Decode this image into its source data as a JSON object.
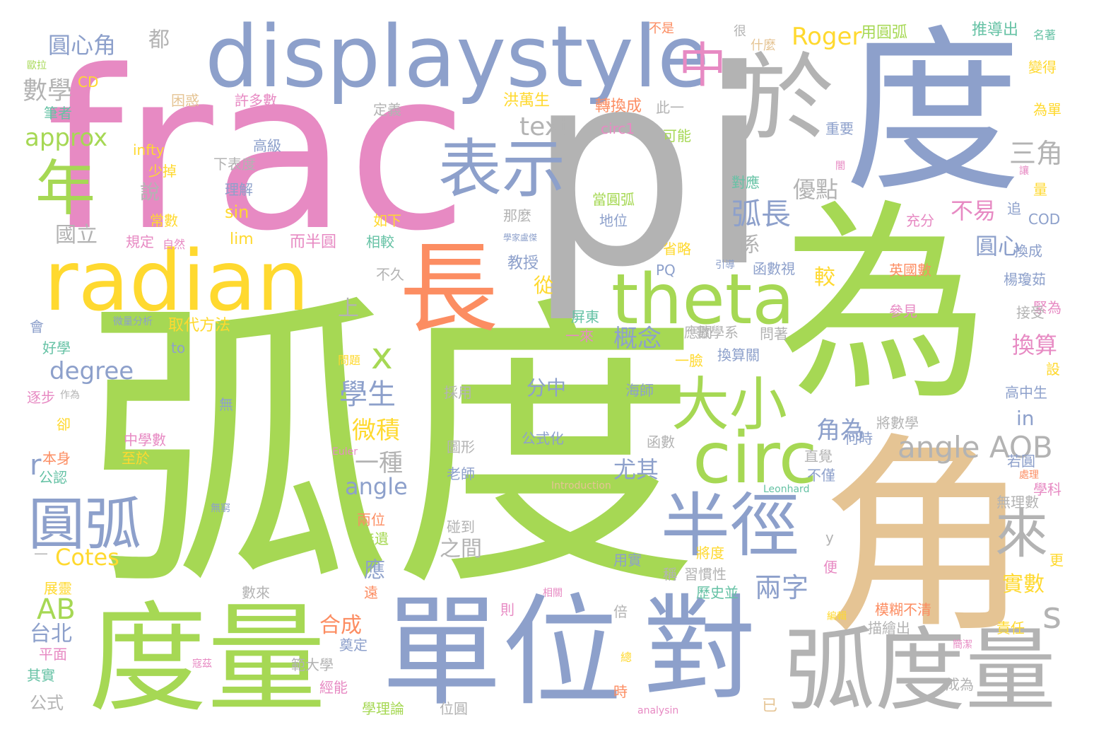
{
  "palette": {
    "green": "#a6d854",
    "blue": "#8da0cb",
    "pink": "#e78ac3",
    "gray": "#b3b3b3",
    "gold": "#ffd92f",
    "tan": "#e5c494",
    "orange": "#fc8d62",
    "teal": "#66c2a5"
  },
  "words": [
    {
      "text": "弧度",
      "color": "green"
    },
    {
      "text": "pi",
      "color": "gray"
    },
    {
      "text": "frac",
      "color": "pink"
    },
    {
      "text": "為",
      "color": "green"
    },
    {
      "text": "度",
      "color": "blue"
    },
    {
      "text": "角",
      "color": "tan"
    },
    {
      "text": "displaystyle",
      "color": "blue"
    },
    {
      "text": "radian",
      "color": "gold"
    },
    {
      "text": "度量",
      "color": "green"
    },
    {
      "text": "單位",
      "color": "blue"
    },
    {
      "text": "弧度量",
      "color": "gray"
    },
    {
      "text": "對",
      "color": "blue"
    },
    {
      "text": "長",
      "color": "orange"
    },
    {
      "text": "於",
      "color": "gray"
    },
    {
      "text": "theta",
      "color": "green"
    },
    {
      "text": "circ",
      "color": "green"
    },
    {
      "text": "半徑",
      "color": "blue"
    },
    {
      "text": "表示",
      "color": "blue"
    },
    {
      "text": "大小",
      "color": "green"
    },
    {
      "text": "圓弧",
      "color": "blue"
    },
    {
      "text": "年",
      "color": "green"
    },
    {
      "text": "中",
      "color": "pink"
    },
    {
      "text": "來",
      "color": "gray"
    },
    {
      "text": "x",
      "color": "green"
    },
    {
      "text": "s",
      "color": "gray"
    },
    {
      "text": "angle AOB",
      "color": "gray"
    },
    {
      "text": "弧長",
      "color": "blue"
    },
    {
      "text": "兩字",
      "color": "blue"
    },
    {
      "text": "學生",
      "color": "blue"
    },
    {
      "text": "三角",
      "color": "gray"
    },
    {
      "text": "數學",
      "color": "gray"
    },
    {
      "text": "圓心角",
      "color": "blue"
    },
    {
      "text": "text",
      "color": "gray"
    },
    {
      "text": "approx",
      "color": "green"
    },
    {
      "text": "Roger",
      "color": "gold"
    },
    {
      "text": "degree",
      "color": "blue"
    },
    {
      "text": "AB",
      "color": "green"
    },
    {
      "text": "Cotes",
      "color": "gold"
    },
    {
      "text": "angle",
      "color": "blue"
    },
    {
      "text": "概念",
      "color": "blue"
    },
    {
      "text": "角為",
      "color": "blue"
    },
    {
      "text": "微積",
      "color": "gold"
    },
    {
      "text": "一種",
      "color": "gray"
    },
    {
      "text": "尤其",
      "color": "blue"
    },
    {
      "text": "優點",
      "color": "gray"
    },
    {
      "text": "不易",
      "color": "pink"
    },
    {
      "text": "圓心",
      "color": "blue"
    },
    {
      "text": "換算",
      "color": "pink"
    },
    {
      "text": "實數",
      "color": "gold"
    },
    {
      "text": "合成",
      "color": "orange"
    },
    {
      "text": "台北",
      "color": "blue"
    },
    {
      "text": "國立",
      "color": "gray"
    },
    {
      "text": "分中",
      "color": "blue"
    },
    {
      "text": "之間",
      "color": "gray"
    },
    {
      "text": "應",
      "color": "blue"
    },
    {
      "text": "r",
      "color": "blue"
    },
    {
      "text": "都",
      "color": "gray"
    },
    {
      "text": "sin",
      "color": "gold"
    },
    {
      "text": "lim",
      "color": "gold"
    },
    {
      "text": "in",
      "color": "blue"
    },
    {
      "text": "較",
      "color": "gold"
    },
    {
      "text": "從",
      "color": "gold"
    },
    {
      "text": "上",
      "color": "gray"
    },
    {
      "text": "說",
      "color": "gray"
    },
    {
      "text": "係",
      "color": "gray"
    },
    {
      "text": "推導出",
      "color": "teal"
    },
    {
      "text": "用圓弧",
      "color": "green"
    },
    {
      "text": "什麼",
      "color": "tan"
    },
    {
      "text": "不是",
      "color": "orange"
    },
    {
      "text": "很",
      "color": "gray"
    },
    {
      "text": "洪萬生",
      "color": "gold"
    },
    {
      "text": "轉換成",
      "color": "orange"
    },
    {
      "text": "此一",
      "color": "gray"
    },
    {
      "text": "定義",
      "color": "gray"
    },
    {
      "text": "許多數",
      "color": "pink"
    },
    {
      "text": "困惑",
      "color": "tan"
    },
    {
      "text": "筆者",
      "color": "teal"
    },
    {
      "text": "circ1",
      "color": "pink"
    },
    {
      "text": "可能",
      "color": "green"
    },
    {
      "text": "重要",
      "color": "blue"
    },
    {
      "text": "infty",
      "color": "gold"
    },
    {
      "text": "高級",
      "color": "blue"
    },
    {
      "text": "少掉",
      "color": "gold"
    },
    {
      "text": "下表度",
      "color": "gray"
    },
    {
      "text": "理解",
      "color": "blue"
    },
    {
      "text": "常數",
      "color": "gold"
    },
    {
      "text": "規定",
      "color": "pink"
    },
    {
      "text": "自然",
      "color": "pink"
    },
    {
      "text": "而半圓",
      "color": "pink"
    },
    {
      "text": "如下",
      "color": "gold"
    },
    {
      "text": "相較",
      "color": "teal"
    },
    {
      "text": "當圓弧",
      "color": "green"
    },
    {
      "text": "地位",
      "color": "blue"
    },
    {
      "text": "對應",
      "color": "teal"
    },
    {
      "text": "那麼",
      "color": "gray"
    },
    {
      "text": "省略",
      "color": "gold"
    },
    {
      "text": "教授",
      "color": "blue"
    },
    {
      "text": "不久",
      "color": "gray"
    },
    {
      "text": "函數視",
      "color": "blue"
    },
    {
      "text": "英國數",
      "color": "orange"
    },
    {
      "text": "PQ",
      "color": "blue"
    },
    {
      "text": "引導",
      "color": "blue"
    },
    {
      "text": "參見",
      "color": "pink"
    },
    {
      "text": "取代方法",
      "color": "gold"
    },
    {
      "text": "微量分析",
      "color": "blue"
    },
    {
      "text": "屏東",
      "color": "teal"
    },
    {
      "text": "應關",
      "color": "gray"
    },
    {
      "text": "數學系",
      "color": "gray"
    },
    {
      "text": "問著",
      "color": "gray"
    },
    {
      "text": "一來",
      "color": "pink"
    },
    {
      "text": "換算關",
      "color": "blue"
    },
    {
      "text": "一臉",
      "color": "gold"
    },
    {
      "text": "好學",
      "color": "teal"
    },
    {
      "text": "to",
      "color": "blue"
    },
    {
      "text": "問題",
      "color": "gold"
    },
    {
      "text": "無",
      "color": "blue"
    },
    {
      "text": "逐步",
      "color": "pink"
    },
    {
      "text": "作為",
      "color": "gray"
    },
    {
      "text": "海師",
      "color": "blue"
    },
    {
      "text": "採用",
      "color": "gray"
    },
    {
      "text": "將數學",
      "color": "gray"
    },
    {
      "text": "中學數",
      "color": "pink"
    },
    {
      "text": "至於",
      "color": "gold"
    },
    {
      "text": "公式化",
      "color": "blue"
    },
    {
      "text": "函數",
      "color": "gray"
    },
    {
      "text": "圖形",
      "color": "gray"
    },
    {
      "text": "何時",
      "color": "blue"
    },
    {
      "text": "直覺",
      "color": "gray"
    },
    {
      "text": "不僅",
      "color": "blue"
    },
    {
      "text": "若圓",
      "color": "blue"
    },
    {
      "text": "Euler",
      "color": "pink"
    },
    {
      "text": "本身",
      "color": "orange"
    },
    {
      "text": "公認",
      "color": "teal"
    },
    {
      "text": "老師",
      "color": "blue"
    },
    {
      "text": "Introduction",
      "color": "tan"
    },
    {
      "text": "Leonhard",
      "color": "teal"
    },
    {
      "text": "無理數",
      "color": "gray"
    },
    {
      "text": "學科",
      "color": "pink"
    },
    {
      "text": "處理",
      "color": "orange"
    },
    {
      "text": "無窮",
      "color": "blue"
    },
    {
      "text": "兩位",
      "color": "orange"
    },
    {
      "text": "無遺",
      "color": "green"
    },
    {
      "text": "碰到",
      "color": "gray"
    },
    {
      "text": "用實",
      "color": "blue"
    },
    {
      "text": "將度",
      "color": "gold"
    },
    {
      "text": "習慣性",
      "color": "gray"
    },
    {
      "text": "歷史並",
      "color": "teal"
    },
    {
      "text": "展靈",
      "color": "gold"
    },
    {
      "text": "數來",
      "color": "gray"
    },
    {
      "text": "遠",
      "color": "orange"
    },
    {
      "text": "相關",
      "color": "pink"
    },
    {
      "text": "則",
      "color": "pink"
    },
    {
      "text": "倍",
      "color": "gray"
    },
    {
      "text": "模糊不清",
      "color": "orange"
    },
    {
      "text": "編輯",
      "color": "gold"
    },
    {
      "text": "描繪出",
      "color": "gray"
    },
    {
      "text": "責任",
      "color": "gold"
    },
    {
      "text": "簡潔",
      "color": "pink"
    },
    {
      "text": "奠定",
      "color": "blue"
    },
    {
      "text": "範大學",
      "color": "gray"
    },
    {
      "text": "經能",
      "color": "pink"
    },
    {
      "text": "寇茲",
      "color": "pink"
    },
    {
      "text": "平面",
      "color": "pink"
    },
    {
      "text": "其實",
      "color": "teal"
    },
    {
      "text": "公式",
      "color": "gray"
    },
    {
      "text": "學理論",
      "color": "green"
    },
    {
      "text": "位圓",
      "color": "gray"
    },
    {
      "text": "analysin",
      "color": "pink"
    },
    {
      "text": "時",
      "color": "orange"
    },
    {
      "text": "總",
      "color": "gold"
    },
    {
      "text": "已",
      "color": "tan"
    },
    {
      "text": "成為",
      "color": "gray"
    },
    {
      "text": "稱",
      "color": "gray"
    },
    {
      "text": "更",
      "color": "gold"
    },
    {
      "text": "便",
      "color": "pink"
    },
    {
      "text": "y",
      "color": "gray"
    },
    {
      "text": "楊瓊茹",
      "color": "blue"
    },
    {
      "text": "緊為",
      "color": "pink"
    },
    {
      "text": "接受",
      "color": "gray"
    },
    {
      "text": "高中生",
      "color": "blue"
    },
    {
      "text": "設",
      "color": "gold"
    },
    {
      "text": "換成",
      "color": "blue"
    },
    {
      "text": "COD",
      "color": "blue"
    },
    {
      "text": "充分",
      "color": "pink"
    },
    {
      "text": "追",
      "color": "blue"
    },
    {
      "text": "量",
      "color": "gold"
    },
    {
      "text": "讓",
      "color": "pink"
    },
    {
      "text": "闇",
      "color": "pink"
    },
    {
      "text": "為單",
      "color": "gold"
    },
    {
      "text": "變得",
      "color": "gold"
    },
    {
      "text": "名著",
      "color": "teal"
    },
    {
      "text": "會",
      "color": "blue"
    },
    {
      "text": "卻",
      "color": "gold"
    },
    {
      "text": "歐拉",
      "color": "green"
    },
    {
      "text": "CD",
      "color": "gold"
    },
    {
      "text": "學家盧傑",
      "color": "blue"
    },
    {
      "text": "—",
      "color": "gray"
    }
  ]
}
